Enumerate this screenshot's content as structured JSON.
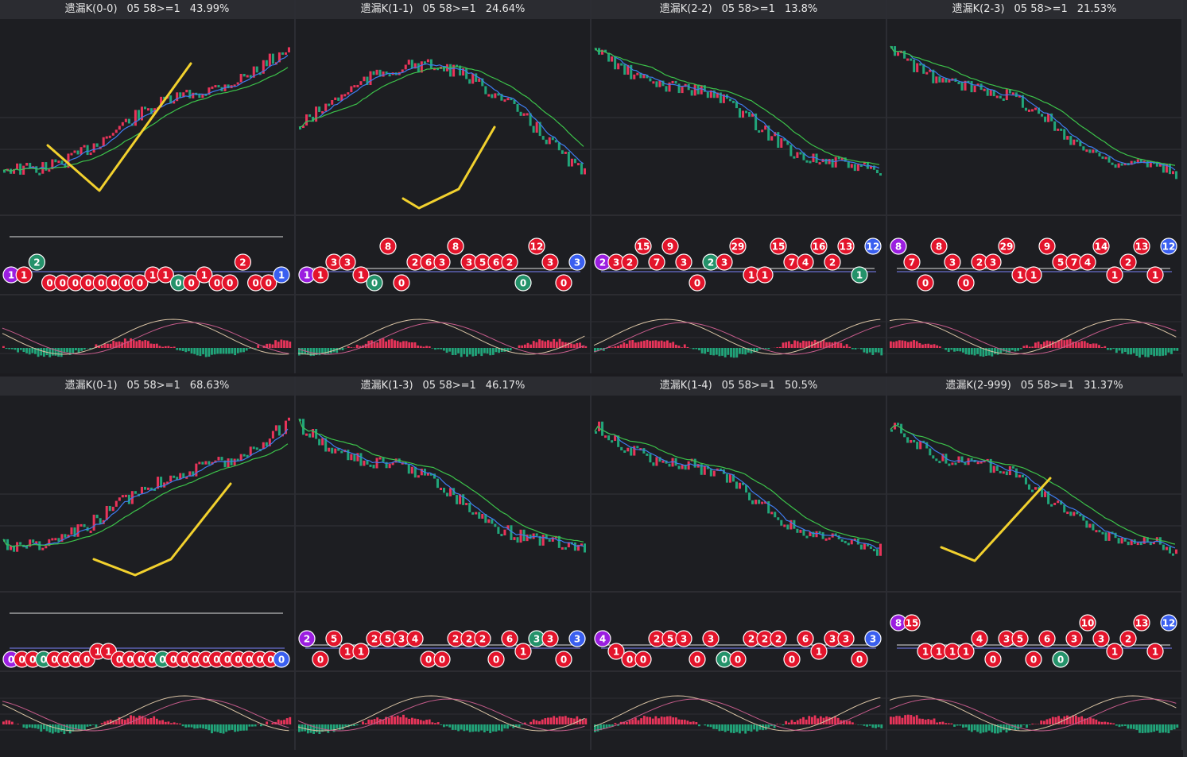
{
  "window": {
    "title": ""
  },
  "panels": [
    {
      "id": "p00",
      "name": "遗漏K(0-0)",
      "cond": "05 58>=1",
      "pct": "43.99%",
      "trend": "up"
    },
    {
      "id": "p11",
      "name": "遗漏K(1-1)",
      "cond": "05 58>=1",
      "pct": "24.64%",
      "trend": "hump"
    },
    {
      "id": "p22",
      "name": "遗漏K(2-2)",
      "cond": "05 58>=1",
      "pct": "13.8%",
      "trend": "down"
    },
    {
      "id": "p23",
      "name": "遗漏K(2-3)",
      "cond": "05 58>=1",
      "pct": "21.53%",
      "trend": "down"
    },
    {
      "id": "p01",
      "name": "遗漏K(0-1)",
      "cond": "05 58>=1",
      "pct": "68.63%",
      "trend": "up"
    },
    {
      "id": "p13",
      "name": "遗漏K(1-3)",
      "cond": "05 58>=1",
      "pct": "46.17%",
      "trend": "down"
    },
    {
      "id": "p14",
      "name": "遗漏K(1-4)",
      "cond": "05 58>=1",
      "pct": "50.5%",
      "trend": "down"
    },
    {
      "id": "p2999",
      "name": "遗漏K(2-999)",
      "cond": "05 58>=1",
      "pct": "31.37%",
      "trend": "down"
    }
  ],
  "badges": [
    [
      "1",
      "1",
      "2",
      "0",
      "0",
      "0",
      "0",
      "0",
      "0",
      "0",
      "0",
      "1",
      "1",
      "0",
      "0",
      "1",
      "0",
      "0",
      "2",
      "0",
      "0",
      "1"
    ],
    [
      "1",
      "1",
      "3",
      "3",
      "1",
      "0",
      "8",
      "0",
      "2",
      "6",
      "3",
      "8",
      "3",
      "5",
      "6",
      "2",
      "0",
      "12",
      "3",
      "0",
      "3"
    ],
    [
      "2",
      "3",
      "2",
      "15",
      "7",
      "9",
      "3",
      "0",
      "2",
      "3",
      "29",
      "1",
      "1",
      "15",
      "7",
      "4",
      "16",
      "2",
      "13",
      "1",
      "12"
    ],
    [
      "8",
      "7",
      "0",
      "8",
      "3",
      "0",
      "2",
      "3",
      "29",
      "1",
      "1",
      "9",
      "5",
      "7",
      "4",
      "14",
      "1",
      "2",
      "13",
      "1",
      "12"
    ],
    [
      "0",
      "0",
      "0",
      "0",
      "0",
      "0",
      "0",
      "0",
      "1",
      "1",
      "0",
      "0",
      "0",
      "0",
      "0",
      "0",
      "0",
      "0",
      "0",
      "0",
      "0",
      "0",
      "0",
      "0",
      "0",
      "0"
    ],
    [
      "2",
      "0",
      "5",
      "1",
      "1",
      "2",
      "5",
      "3",
      "4",
      "0",
      "0",
      "2",
      "2",
      "2",
      "0",
      "6",
      "1",
      "3",
      "3",
      "0",
      "3"
    ],
    [
      "4",
      "1",
      "0",
      "0",
      "2",
      "5",
      "3",
      "0",
      "3",
      "0",
      "0",
      "2",
      "2",
      "2",
      "0",
      "6",
      "1",
      "3",
      "3",
      "0",
      "3"
    ],
    [
      "8",
      "15",
      "1",
      "1",
      "1",
      "1",
      "4",
      "0",
      "3",
      "5",
      "0",
      "6",
      "0",
      "3",
      "10",
      "3",
      "1",
      "2",
      "13",
      "1",
      "12"
    ]
  ]
}
